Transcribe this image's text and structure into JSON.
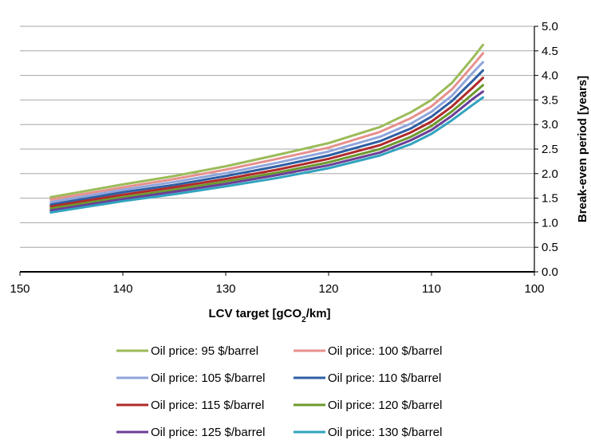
{
  "chart_data": {
    "type": "line",
    "xlabel_parts": {
      "before": "LCV target [gCO",
      "sub": "2",
      "after": "/km]"
    },
    "ylabel": "Break-even period [years]",
    "xlim": [
      150,
      100
    ],
    "ylim": [
      0.0,
      5.0
    ],
    "x_ticks": [
      "150",
      "140",
      "130",
      "120",
      "110",
      "100"
    ],
    "y_ticks": [
      "0.0",
      "0.5",
      "1.0",
      "1.5",
      "2.0",
      "2.5",
      "3.0",
      "3.5",
      "4.0",
      "4.5",
      "5.0"
    ],
    "y_axis_position": "right",
    "grid": "horizontal",
    "legend_position": "bottom",
    "x": [
      147,
      140,
      135,
      130,
      125,
      120,
      115,
      112,
      110,
      108,
      106,
      105
    ],
    "series": [
      {
        "name": "Oil price: 95 $/barrel",
        "color": "#9bbb59",
        "values": [
          1.52,
          1.78,
          1.95,
          2.15,
          2.38,
          2.62,
          2.95,
          3.25,
          3.5,
          3.85,
          4.35,
          4.62
        ]
      },
      {
        "name": "Oil price: 100 $/barrel",
        "color": "#e6908d",
        "values": [
          1.47,
          1.72,
          1.89,
          2.08,
          2.3,
          2.53,
          2.85,
          3.13,
          3.37,
          3.72,
          4.2,
          4.45
        ]
      },
      {
        "name": "Oil price: 105 $/barrel",
        "color": "#8fa5db",
        "values": [
          1.42,
          1.67,
          1.83,
          2.01,
          2.22,
          2.45,
          2.75,
          3.02,
          3.26,
          3.59,
          4.05,
          4.27
        ]
      },
      {
        "name": "Oil price: 110 $/barrel",
        "color": "#2e5fa3",
        "values": [
          1.37,
          1.62,
          1.77,
          1.95,
          2.15,
          2.37,
          2.66,
          2.92,
          3.16,
          3.48,
          3.89,
          4.1
        ]
      },
      {
        "name": "Oil price: 115 $/barrel",
        "color": "#b02a2a",
        "values": [
          1.33,
          1.57,
          1.72,
          1.89,
          2.08,
          2.3,
          2.58,
          2.84,
          3.06,
          3.37,
          3.75,
          3.95
        ]
      },
      {
        "name": "Oil price: 120 $/barrel",
        "color": "#6c9a2e",
        "values": [
          1.29,
          1.52,
          1.67,
          1.84,
          2.02,
          2.23,
          2.5,
          2.75,
          2.97,
          3.27,
          3.62,
          3.8
        ]
      },
      {
        "name": "Oil price: 125 $/barrel",
        "color": "#6b3e97",
        "values": [
          1.25,
          1.48,
          1.63,
          1.79,
          1.97,
          2.17,
          2.43,
          2.68,
          2.89,
          3.18,
          3.52,
          3.67
        ]
      },
      {
        "name": "Oil price: 130 $/barrel",
        "color": "#31a3be",
        "values": [
          1.21,
          1.44,
          1.58,
          1.74,
          1.91,
          2.11,
          2.37,
          2.6,
          2.81,
          3.09,
          3.4,
          3.55
        ]
      }
    ]
  }
}
